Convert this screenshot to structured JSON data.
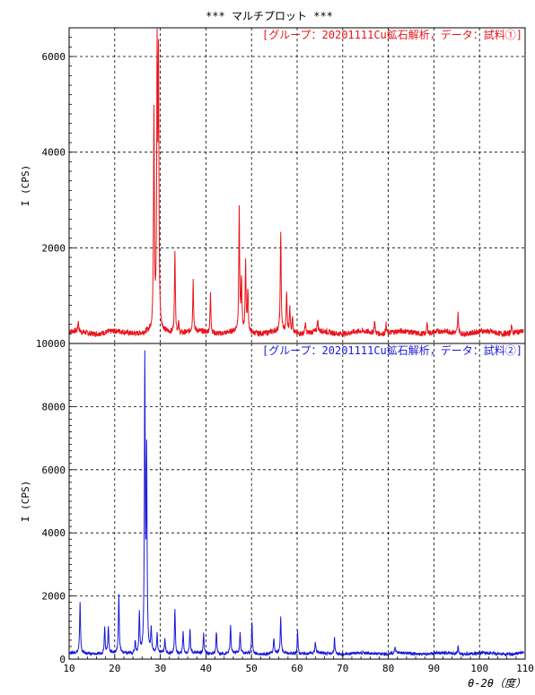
{
  "chart_data": {
    "type": "line",
    "title": "***   マルチプロット   ***",
    "xlabel": "θ-2θ（度）",
    "xlim": [
      10,
      110
    ],
    "x_ticks": [
      10,
      20,
      30,
      40,
      50,
      60,
      70,
      80,
      90,
      100,
      110
    ],
    "x_tick_labels": [
      "10",
      "20",
      "30",
      "40",
      "50",
      "60",
      "70",
      "80",
      "90",
      "100",
      "110"
    ],
    "grid": true,
    "panels": [
      {
        "legend": "[グループ：20201111Cu鉱石解析，データ：試料①]",
        "ylabel": "I (CPS)",
        "ylim": [
          0,
          6600
        ],
        "y_ticks": [
          2000,
          4000,
          6000
        ],
        "y_tick_labels": [
          "2000",
          "4000",
          "6000"
        ],
        "color": "#e8141b",
        "baseline": 230,
        "peaks": [
          {
            "x": 12.0,
            "y": 450
          },
          {
            "x": 28.6,
            "y": 4800
          },
          {
            "x": 29.3,
            "y": 6000
          },
          {
            "x": 29.6,
            "y": 5600
          },
          {
            "x": 33.2,
            "y": 2000
          },
          {
            "x": 34.0,
            "y": 450
          },
          {
            "x": 37.2,
            "y": 1300
          },
          {
            "x": 41.0,
            "y": 1050
          },
          {
            "x": 47.3,
            "y": 2800
          },
          {
            "x": 47.8,
            "y": 1300
          },
          {
            "x": 48.7,
            "y": 1700
          },
          {
            "x": 49.2,
            "y": 1100
          },
          {
            "x": 56.4,
            "y": 2350
          },
          {
            "x": 57.7,
            "y": 1050
          },
          {
            "x": 58.4,
            "y": 750
          },
          {
            "x": 59.0,
            "y": 600
          },
          {
            "x": 61.8,
            "y": 450
          },
          {
            "x": 64.5,
            "y": 500
          },
          {
            "x": 77.0,
            "y": 500
          },
          {
            "x": 79.5,
            "y": 430
          },
          {
            "x": 88.5,
            "y": 450
          },
          {
            "x": 95.3,
            "y": 650
          },
          {
            "x": 107.0,
            "y": 400
          }
        ]
      },
      {
        "legend": "[グループ：20201111Cu鉱石解析，データ：試料②]",
        "ylabel": "I (CPS)",
        "ylim": [
          0,
          10000
        ],
        "y_ticks": [
          0,
          2000,
          4000,
          6000,
          8000,
          10000
        ],
        "y_tick_labels": [
          "0",
          "2000",
          "4000",
          "6000",
          "8000",
          "10000"
        ],
        "color": "#1a1ad6",
        "baseline": 180,
        "peaks": [
          {
            "x": 12.4,
            "y": 1800
          },
          {
            "x": 17.8,
            "y": 1050
          },
          {
            "x": 18.6,
            "y": 1050
          },
          {
            "x": 20.9,
            "y": 2050
          },
          {
            "x": 24.5,
            "y": 600
          },
          {
            "x": 25.4,
            "y": 1450
          },
          {
            "x": 26.6,
            "y": 9350
          },
          {
            "x": 27.0,
            "y": 6300
          },
          {
            "x": 28.0,
            "y": 950
          },
          {
            "x": 29.3,
            "y": 750
          },
          {
            "x": 31.0,
            "y": 650
          },
          {
            "x": 33.2,
            "y": 1600
          },
          {
            "x": 35.0,
            "y": 900
          },
          {
            "x": 36.5,
            "y": 950
          },
          {
            "x": 39.5,
            "y": 800
          },
          {
            "x": 42.3,
            "y": 900
          },
          {
            "x": 45.4,
            "y": 1050
          },
          {
            "x": 47.5,
            "y": 800
          },
          {
            "x": 50.1,
            "y": 1200
          },
          {
            "x": 54.9,
            "y": 650
          },
          {
            "x": 56.4,
            "y": 1300
          },
          {
            "x": 60.1,
            "y": 900
          },
          {
            "x": 64.0,
            "y": 550
          },
          {
            "x": 68.2,
            "y": 700
          },
          {
            "x": 81.5,
            "y": 400
          },
          {
            "x": 95.3,
            "y": 420
          }
        ]
      }
    ]
  }
}
